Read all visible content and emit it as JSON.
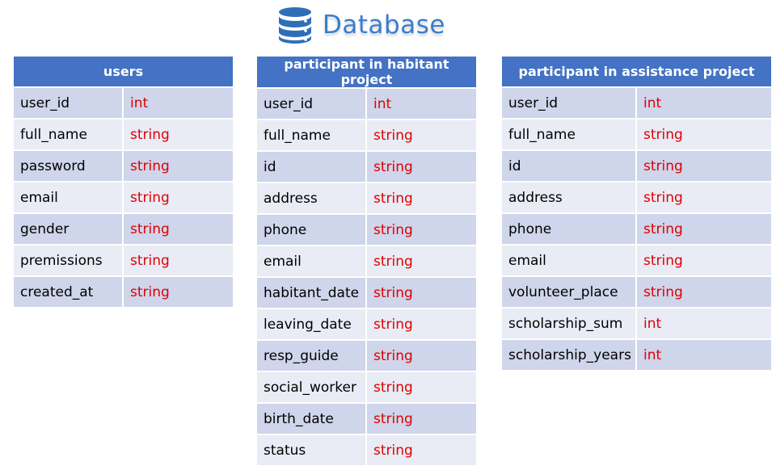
{
  "header": {
    "title": "Database",
    "icon": "database-icon"
  },
  "colors": {
    "header_bg": "#4472c4",
    "row_dark": "#cfd5ea",
    "row_light": "#e9ebf5",
    "type_text": "#e00000",
    "title_text": "#3a7dd0"
  },
  "tables": [
    {
      "name": "users",
      "fields": [
        {
          "name": "user_id",
          "type": "int"
        },
        {
          "name": "full_name",
          "type": "string"
        },
        {
          "name": "password",
          "type": "string"
        },
        {
          "name": "email",
          "type": "string"
        },
        {
          "name": "gender",
          "type": "string"
        },
        {
          "name": "premissions",
          "type": "string"
        },
        {
          "name": "created_at",
          "type": "string"
        }
      ]
    },
    {
      "name": "participant in habitant project",
      "fields": [
        {
          "name": "user_id",
          "type": "int"
        },
        {
          "name": "full_name",
          "type": "string"
        },
        {
          "name": "id",
          "type": "string"
        },
        {
          "name": "address",
          "type": "string"
        },
        {
          "name": "phone",
          "type": "string"
        },
        {
          "name": "email",
          "type": "string"
        },
        {
          "name": "habitant_date",
          "type": "string"
        },
        {
          "name": "leaving_date",
          "type": "string"
        },
        {
          "name": "resp_guide",
          "type": "string"
        },
        {
          "name": "social_worker",
          "type": "string"
        },
        {
          "name": "birth_date",
          "type": "string"
        },
        {
          "name": "status",
          "type": "string"
        }
      ]
    },
    {
      "name": "participant in assistance project",
      "fields": [
        {
          "name": "user_id",
          "type": "int"
        },
        {
          "name": "full_name",
          "type": "string"
        },
        {
          "name": "id",
          "type": "string"
        },
        {
          "name": "address",
          "type": "string"
        },
        {
          "name": "phone",
          "type": "string"
        },
        {
          "name": "email",
          "type": "string"
        },
        {
          "name": "volunteer_place",
          "type": "string"
        },
        {
          "name": "scholarship_sum",
          "type": "int"
        },
        {
          "name": "scholarship_years",
          "type": "int"
        }
      ]
    }
  ]
}
